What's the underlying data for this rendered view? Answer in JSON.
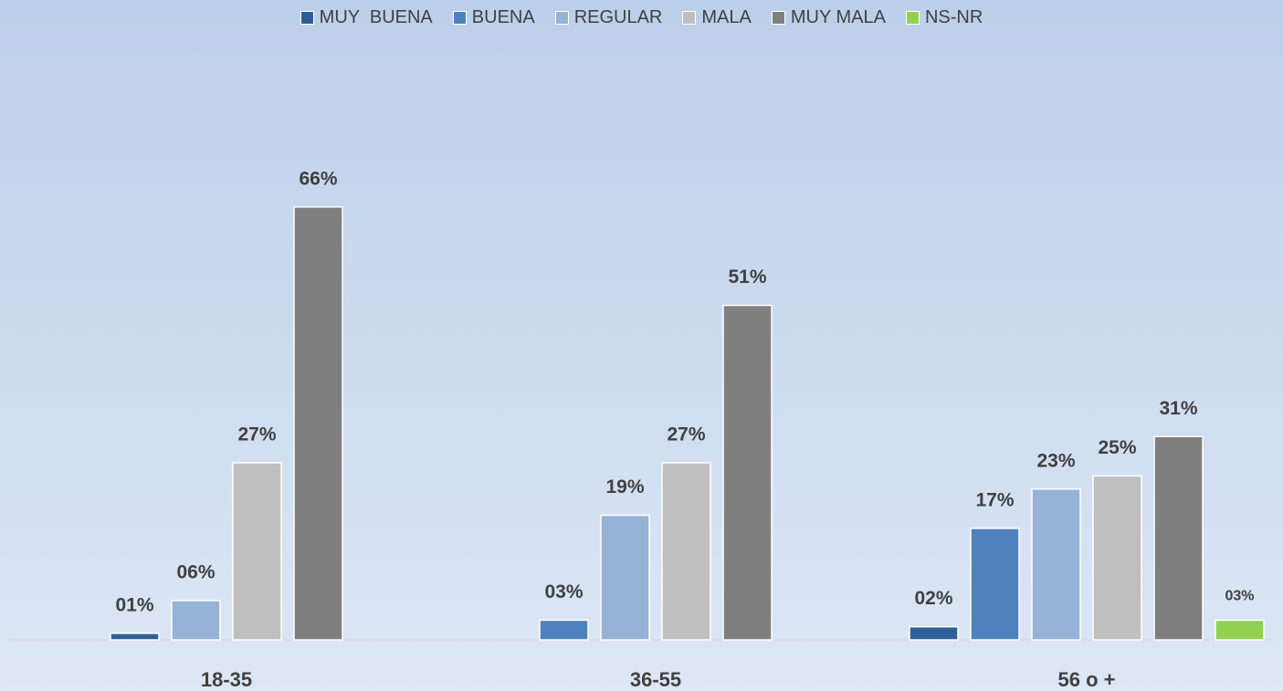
{
  "chart_data": {
    "type": "bar",
    "categories": [
      "18-35",
      "36-55",
      "56 o +"
    ],
    "series": [
      {
        "name": "MUY  BUENA",
        "color": "#2f5f98",
        "values": [
          1,
          null,
          2
        ],
        "value_labels": [
          "01%",
          null,
          "02%"
        ]
      },
      {
        "name": "BUENA",
        "color": "#4f81bd",
        "values": [
          null,
          3,
          17
        ],
        "value_labels": [
          null,
          "03%",
          "17%"
        ]
      },
      {
        "name": "REGULAR",
        "color": "#95b3d7",
        "values": [
          6,
          19,
          23
        ],
        "value_labels": [
          "06%",
          "19%",
          "23%"
        ]
      },
      {
        "name": "MALA",
        "color": "#bfbfbf",
        "values": [
          27,
          27,
          25
        ],
        "value_labels": [
          "27%",
          "27%",
          "25%"
        ]
      },
      {
        "name": "MUY MALA",
        "color": "#7f7f7f",
        "values": [
          66,
          51,
          31
        ],
        "value_labels": [
          "66%",
          "51%",
          "31%"
        ]
      },
      {
        "name": "NS-NR",
        "color": "#92d050",
        "values": [
          null,
          null,
          3
        ],
        "value_labels": [
          null,
          null,
          "03%"
        ]
      }
    ],
    "ylim": [
      0,
      70
    ],
    "legend": "top"
  }
}
